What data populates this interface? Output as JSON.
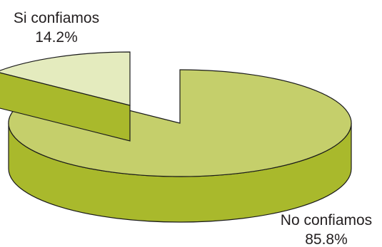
{
  "chart_data": {
    "type": "pie",
    "style": "3d exploded",
    "slices": [
      {
        "label": "Si confiamos",
        "value": 14.2,
        "value_text": "14.2%",
        "top_color": "#e4ebbe",
        "side_color": "#a9b92c"
      },
      {
        "label": "No confiamos",
        "value": 85.8,
        "value_text": "85.8%",
        "top_color": "#c5cf6b",
        "side_color": "#a9b92c"
      }
    ],
    "outline_color": "#1a1a1a",
    "legend": "none"
  }
}
